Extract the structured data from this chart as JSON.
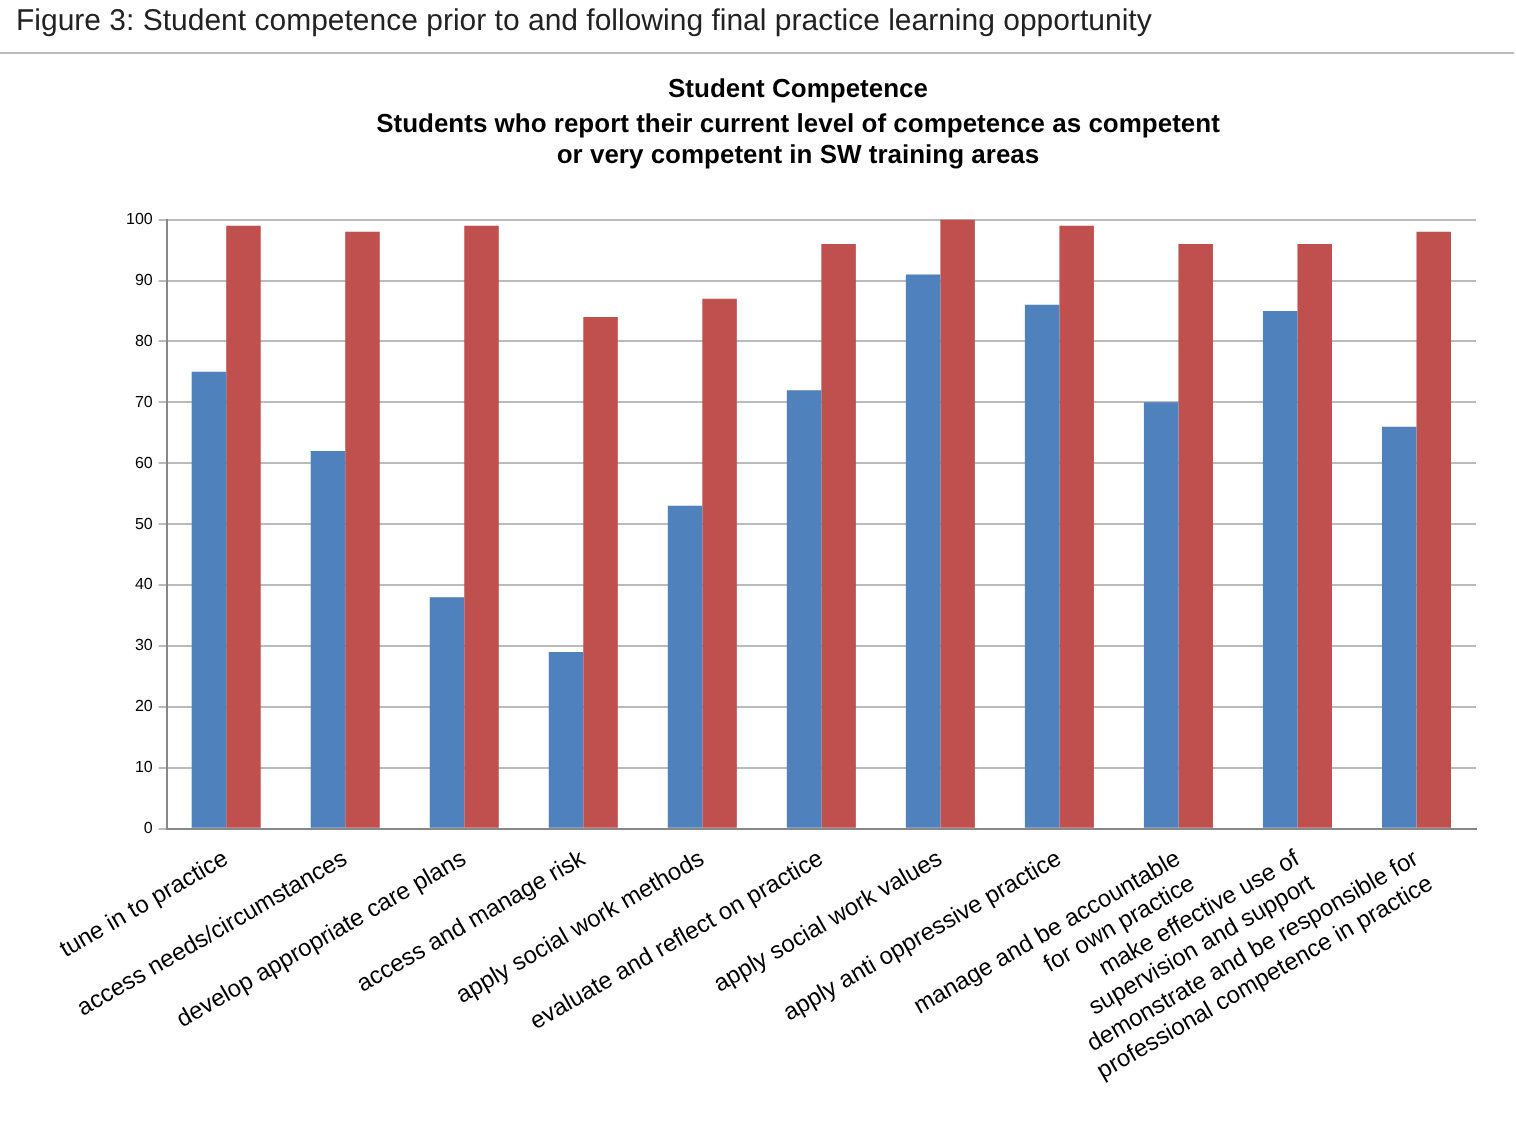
{
  "chart_data": {
    "type": "bar",
    "title": "Student Competence",
    "subtitle": "Students who report their current level of competence as competent\nor very competent in SW training areas",
    "annotations": [
      "Figure 3: Student competence prior to and following final practice learning opportunity"
    ],
    "categories": [
      "tune in to practice",
      "access needs/circumstances",
      "develop appropriate care plans",
      "access and manage risk",
      "apply social work methods",
      "evaluate and reflect on practice",
      "apply social work values",
      "apply anti oppressive practice",
      "manage and be accountable\nfor own practice",
      "make effective use of\nsupervision and support",
      "demonstrate and be responsible for\nprofessional competence in practice"
    ],
    "series": [
      {
        "color": "#4f81bd",
        "values": [
          75,
          62,
          38,
          29,
          53,
          72,
          91,
          86,
          70,
          85,
          66
        ]
      },
      {
        "color": "#c0504d",
        "values": [
          99,
          98,
          99,
          84,
          87,
          96,
          100,
          99,
          96,
          96,
          98
        ]
      }
    ],
    "ylim": [
      0,
      100
    ],
    "yticks": [
      0,
      10,
      20,
      30,
      40,
      50,
      60,
      70,
      80,
      90,
      100
    ],
    "grid": "y",
    "legend": false
  }
}
